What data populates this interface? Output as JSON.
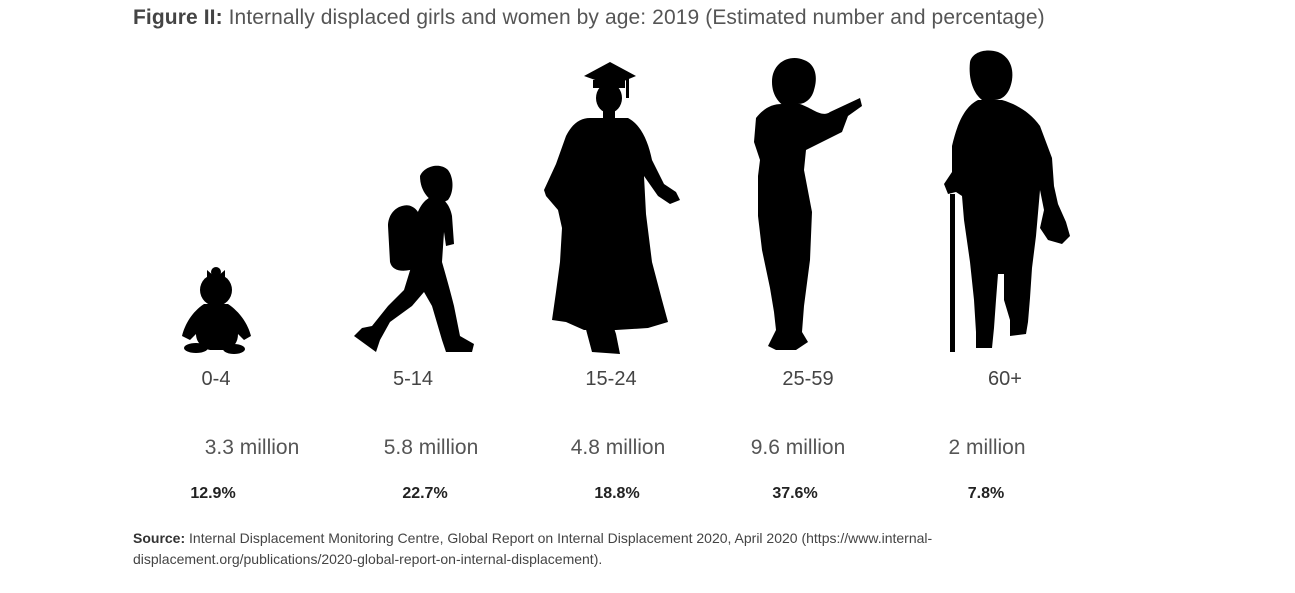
{
  "figure": {
    "prefix": "Figure II:",
    "title": "Internally displaced girls and women by age: 2019 (Estimated number and percentage)"
  },
  "chart_data": {
    "type": "table",
    "categories": [
      "0-4",
      "5-14",
      "15-24",
      "25-59",
      "60+"
    ],
    "series": [
      {
        "name": "",
        "values": [
          3.3,
          5.8,
          4.8,
          9.6,
          2
        ],
        "labels": [
          "3.3 million",
          "5.8 million",
          "4.8 million",
          "9.6 million",
          "2 million"
        ]
      },
      {
        "name": "",
        "values": [
          12.9,
          22.7,
          18.8,
          37.6,
          7.8
        ],
        "labels": [
          "12.9%",
          "22.7%",
          "18.8%",
          "37.6%",
          "7.8%"
        ]
      }
    ],
    "icons": [
      "baby-silhouette-icon",
      "child-backpack-silhouette-icon",
      "graduate-silhouette-icon",
      "woman-reading-silhouette-icon",
      "elderly-woman-cane-silhouette-icon"
    ],
    "silhouette_color": "#000000"
  },
  "source": {
    "label": "Source:",
    "text": "Internal Displacement Monitoring Centre, Global Report on Internal Displacement 2020, April 2020 (https://www.internal-displacement.org/publications/2020-global-report-on-internal-displacement)."
  }
}
